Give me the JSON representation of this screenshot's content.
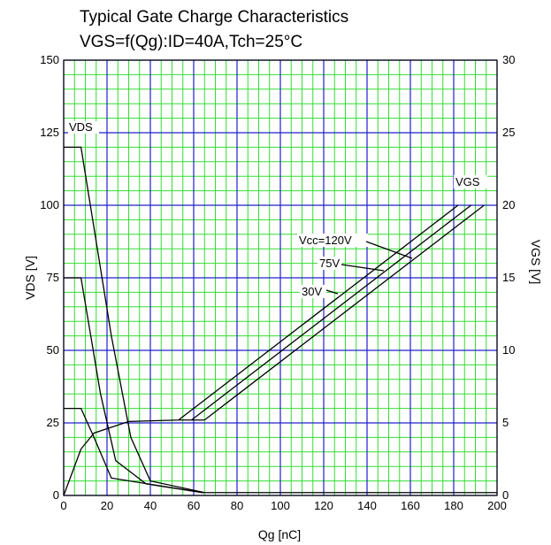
{
  "chart_data": {
    "type": "line",
    "title": "Typical Gate Charge Characteristics",
    "subtitle": "VGS=f(Qg):ID=40A,Tch=25°C",
    "xlabel": "Qg [nC]",
    "ylabel_left": "VDS [V]",
    "ylabel_right": "VGS [V]",
    "xlim": [
      0,
      200
    ],
    "ylim_left": [
      0,
      150
    ],
    "ylim_right": [
      0,
      30
    ],
    "x_ticks": [
      0,
      20,
      40,
      60,
      80,
      100,
      120,
      140,
      160,
      180,
      200
    ],
    "y_left_ticks": [
      0,
      25,
      50,
      75,
      100,
      125,
      150
    ],
    "y_right_ticks": [
      0,
      5,
      10,
      15,
      20,
      25,
      30
    ],
    "grid": true,
    "colors": {
      "minor_grid": "#33dd33",
      "major_grid": "#2020cc",
      "curves": "#000000",
      "background": "#ffffff"
    },
    "vds_series": [
      {
        "name": "VDS Vcc=120V",
        "x": [
          0,
          8,
          22,
          31,
          40,
          65
        ],
        "y": [
          120,
          120,
          55,
          20,
          5,
          1
        ]
      },
      {
        "name": "VDS Vcc=75V",
        "x": [
          0,
          8,
          17,
          24,
          38,
          64
        ],
        "y": [
          75,
          75,
          35,
          12,
          4,
          1
        ]
      },
      {
        "name": "VDS Vcc=30V",
        "x": [
          0,
          8,
          14,
          22,
          64,
          200
        ],
        "y": [
          30,
          30,
          20,
          6,
          1,
          1
        ]
      }
    ],
    "vgs_series": [
      {
        "name": "VGS Vcc=120V",
        "x": [
          0,
          8,
          14,
          30,
          53,
          182
        ],
        "y": [
          0,
          3.2,
          4.3,
          5.1,
          5.2,
          20
        ]
      },
      {
        "name": "VGS Vcc=75V",
        "x": [
          53,
          59,
          188
        ],
        "y": [
          5.2,
          5.2,
          20
        ]
      },
      {
        "name": "VGS Vcc=30V",
        "x": [
          59,
          65,
          194
        ],
        "y": [
          5.2,
          5.2,
          20
        ]
      }
    ],
    "annotations": {
      "vds": "VDS",
      "vgs": "VGS",
      "vcc120": "Vcc=120V",
      "vcc75": "75V",
      "vcc30": "30V"
    }
  }
}
